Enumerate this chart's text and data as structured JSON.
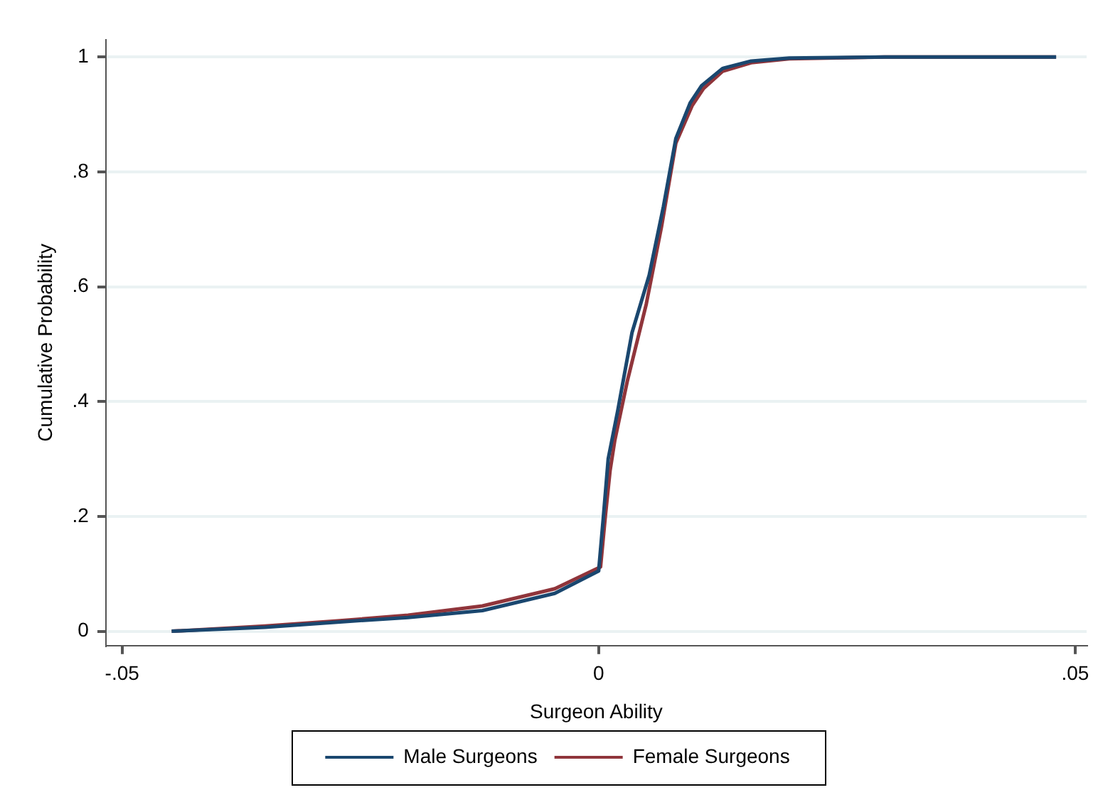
{
  "chart_data": {
    "type": "line",
    "xlabel": "Surgeon Ability",
    "ylabel": "Cumulative Probability",
    "xlim": [
      -0.0517,
      0.0512
    ],
    "ylim": [
      -0.025,
      1.03
    ],
    "xticks": [
      {
        "value": -0.05,
        "label": "-.05"
      },
      0,
      {
        "value": 0.05,
        "label": ".05"
      }
    ],
    "yticks": [
      0,
      {
        "value": 0.2,
        "label": ".2"
      },
      {
        "value": 0.4,
        "label": ".4"
      },
      {
        "value": 0.6,
        "label": ".6"
      },
      {
        "value": 0.8,
        "label": ".8"
      },
      1
    ],
    "grid": "y",
    "legend": "bottom",
    "marker": "none",
    "line_style": "solid",
    "series": [
      {
        "name": "Male Surgeons",
        "color": "#1a476f",
        "x": [
          -0.0448,
          -0.035,
          -0.0274,
          -0.02,
          -0.0122,
          -0.0046,
          0,
          0.0005,
          0.001,
          0.002,
          0.0035,
          0.0053,
          0.0068,
          0.0081,
          0.0096,
          0.0108,
          0.013,
          0.016,
          0.02,
          0.03,
          0.048
        ],
        "values": [
          0,
          0.007,
          0.016,
          0.024,
          0.036,
          0.066,
          0.105,
          0.2,
          0.3,
          0.384,
          0.52,
          0.62,
          0.74,
          0.858,
          0.92,
          0.95,
          0.98,
          0.993,
          0.998,
          1,
          1
        ]
      },
      {
        "name": "Female Surgeons",
        "color": "#90353b",
        "x": [
          -0.0448,
          -0.035,
          -0.0274,
          -0.02,
          -0.0122,
          -0.0046,
          0.0002,
          0.0007,
          0.0012,
          0.0017,
          0.003,
          0.005,
          0.0066,
          0.0081,
          0.0098,
          0.011,
          0.013,
          0.016,
          0.02,
          0.03,
          0.048
        ],
        "values": [
          0,
          0.009,
          0.018,
          0.028,
          0.044,
          0.074,
          0.112,
          0.2,
          0.28,
          0.333,
          0.435,
          0.57,
          0.705,
          0.85,
          0.915,
          0.945,
          0.975,
          0.99,
          0.997,
          1,
          1
        ]
      }
    ]
  }
}
